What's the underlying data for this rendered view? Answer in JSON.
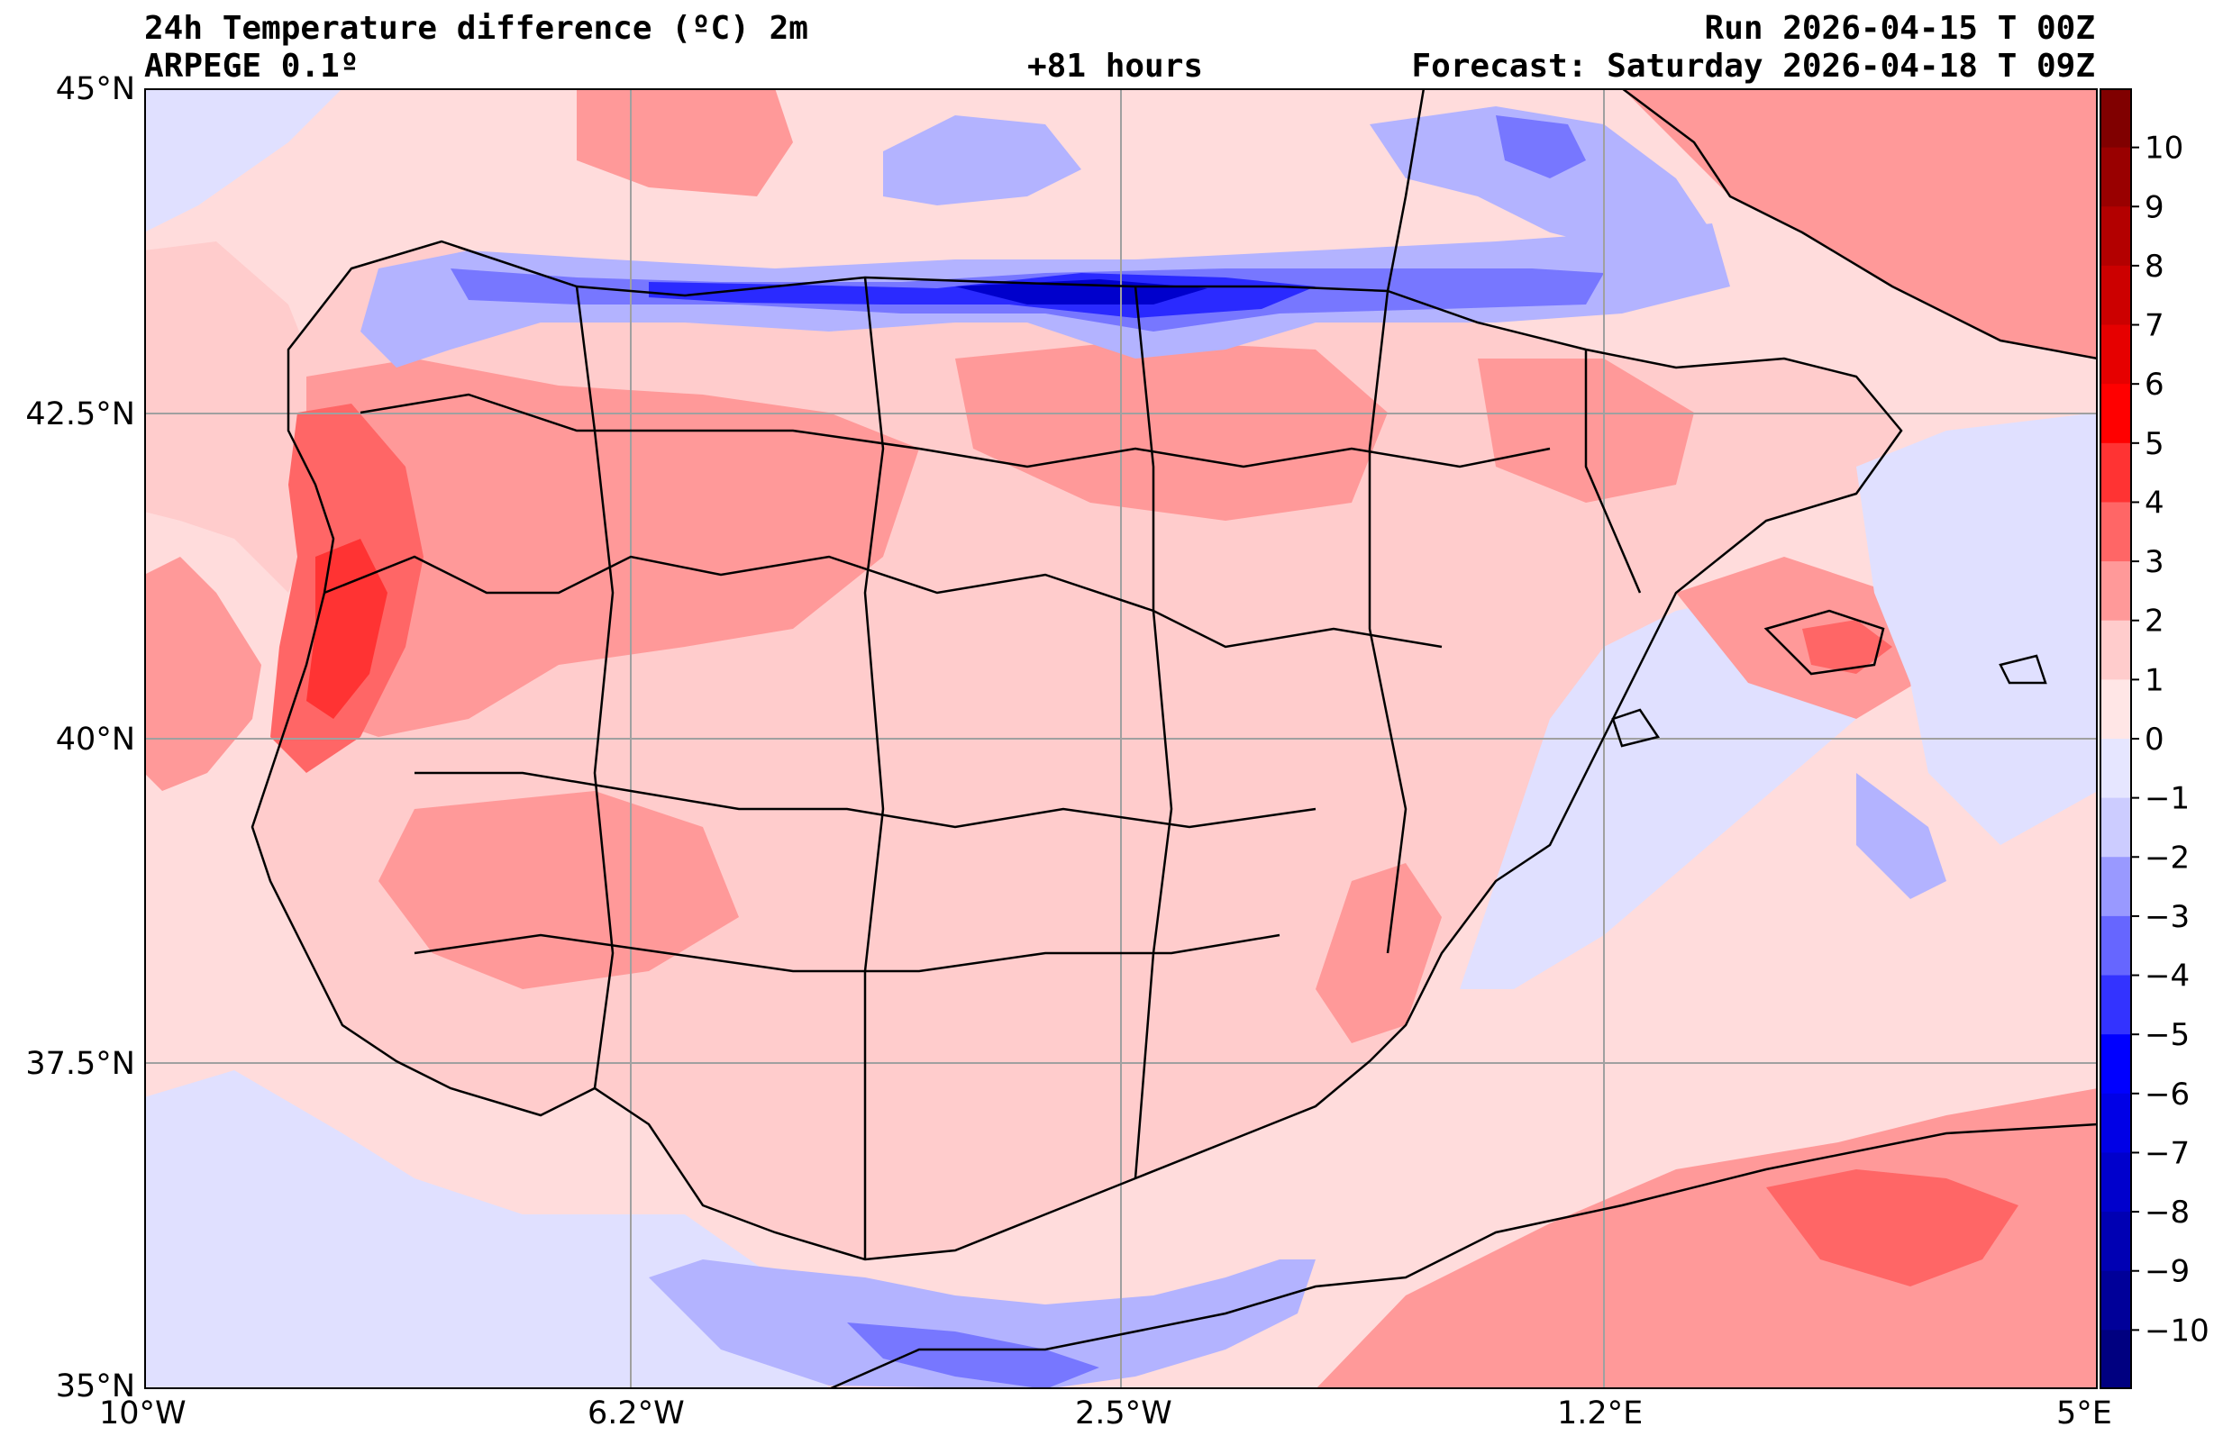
{
  "header": {
    "title_line1": "24h Temperature difference (ºC) 2m",
    "title_line2": "ARPEGE 0.1º",
    "lead_time": "+81 hours",
    "run": "Run 2026-04-15 T 00Z",
    "forecast": "Forecast: Saturday 2026-04-18 T 09Z"
  },
  "map": {
    "region": "Iberian Peninsula",
    "lat_ticks": [
      "45°N",
      "42.5°N",
      "40°N",
      "37.5°N",
      "35°N"
    ],
    "lon_ticks": [
      "10°W",
      "6.2°W",
      "2.5°W",
      "1.2°E",
      "5°E"
    ],
    "lat_range": [
      35,
      45
    ],
    "lon_range": [
      -10,
      5
    ],
    "gridlines": true
  },
  "colorbar": {
    "levels": [
      10,
      9,
      8,
      7,
      6,
      5,
      4,
      3,
      2,
      1,
      0,
      -1,
      -2,
      -3,
      -4,
      -5,
      -6,
      -7,
      -8,
      -9,
      -10
    ],
    "labels": [
      "10",
      "9",
      "8",
      "7",
      "6",
      "5",
      "4",
      "3",
      "2",
      "1",
      "0",
      "−1",
      "−2",
      "−3",
      "−4",
      "−5",
      "−6",
      "−7",
      "−8",
      "−9",
      "−10"
    ],
    "colors": [
      "#800000",
      "#990000",
      "#b30000",
      "#cc0000",
      "#e60000",
      "#ff0000",
      "#ff3333",
      "#ff6666",
      "#ff9999",
      "#ffcccc",
      "#ffe6e6",
      "#e6e6ff",
      "#ccccff",
      "#9999ff",
      "#6666ff",
      "#3333ff",
      "#0000ff",
      "#0000e6",
      "#0000cc",
      "#0000b3",
      "#000099",
      "#000080"
    ]
  },
  "palette": {
    "sea_pos": "#ffdcdc",
    "land_pos1": "#ffcccc",
    "land_pos2": "#ff9999",
    "land_pos3": "#ff6666",
    "land_pos4": "#ff3333",
    "neg1": "#e0e0ff",
    "neg2": "#b3b3ff",
    "neg3": "#7777ff",
    "neg5": "#2a2aff",
    "neg7": "#0000cc",
    "border": "#000000",
    "grid": "#a0a0a0"
  }
}
